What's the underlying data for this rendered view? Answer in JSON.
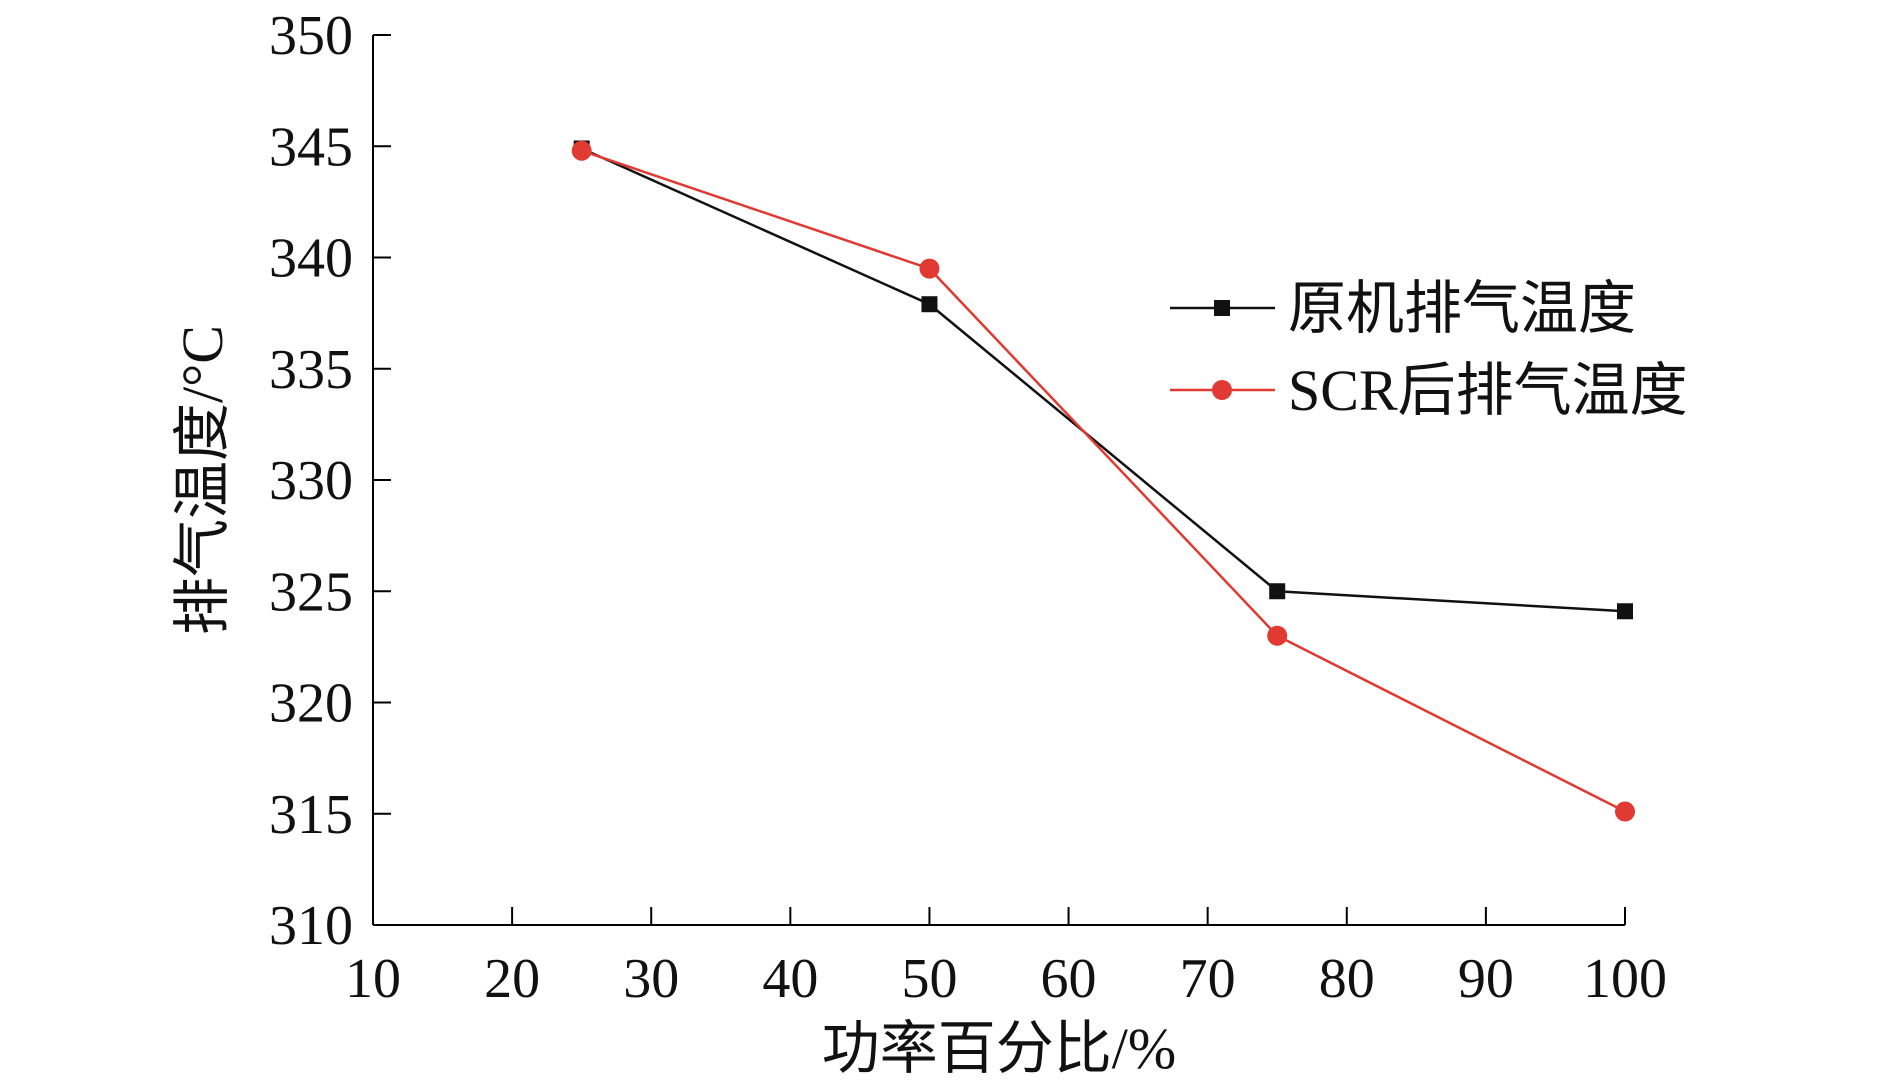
{
  "chart_data": {
    "type": "line",
    "title": "",
    "xlabel": "功率百分比/%",
    "ylabel": "排气温度/°C",
    "xlim": [
      10,
      100
    ],
    "ylim": [
      310,
      350
    ],
    "xticks": [
      10,
      20,
      30,
      40,
      50,
      60,
      70,
      80,
      90,
      100
    ],
    "yticks": [
      310,
      315,
      320,
      325,
      330,
      335,
      340,
      345,
      350
    ],
    "x": [
      25,
      50,
      75,
      100
    ],
    "series": [
      {
        "name": "原机排气温度",
        "marker": "square",
        "color": "#111111",
        "values": [
          344.9,
          337.9,
          325.0,
          324.1
        ]
      },
      {
        "name": "SCR后排气温度",
        "marker": "circle",
        "color": "#e03a32",
        "values": [
          344.8,
          339.5,
          323.0,
          315.1
        ]
      }
    ],
    "legend_position": "right",
    "grid": false
  }
}
